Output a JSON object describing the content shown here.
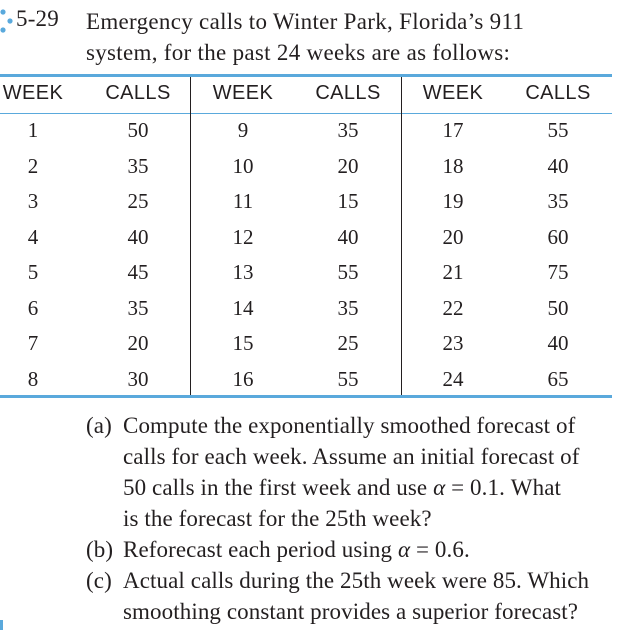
{
  "problem": {
    "number": "5-29",
    "text_lines": [
      "Emergency calls to Winter Park, Florida’s 911",
      "system, for the past 24 weeks are as follows:"
    ],
    "marker_color": "#5aa9dc"
  },
  "table": {
    "headers": [
      "WEEK",
      "CALLS",
      "WEEK",
      "CALLS",
      "WEEK",
      "CALLS"
    ],
    "rule_color": "#5aa9dc",
    "groups": [
      {
        "weeks": [
          "1",
          "2",
          "3",
          "4",
          "5",
          "6",
          "7",
          "8"
        ],
        "calls": [
          "50",
          "35",
          "25",
          "40",
          "45",
          "35",
          "20",
          "30"
        ]
      },
      {
        "weeks": [
          "9",
          "10",
          "11",
          "12",
          "13",
          "14",
          "15",
          "16"
        ],
        "calls": [
          "35",
          "20",
          "15",
          "40",
          "55",
          "35",
          "25",
          "55"
        ]
      },
      {
        "weeks": [
          "17",
          "18",
          "19",
          "20",
          "21",
          "22",
          "23",
          "24"
        ],
        "calls": [
          "55",
          "40",
          "35",
          "60",
          "75",
          "50",
          "40",
          "65"
        ]
      }
    ]
  },
  "parts": [
    {
      "label": "(a)",
      "lines": [
        "Compute the exponentially smoothed forecast of",
        "calls for each week. Assume an initial forecast of",
        "50 calls in the first week and use α = 0.1. What",
        "is the forecast for the 25th week?"
      ]
    },
    {
      "label": "(b)",
      "lines": [
        "Reforecast each period using α = 0.6."
      ]
    },
    {
      "label": "(c)",
      "lines": [
        "Actual calls during the 25th week were 85. Which",
        "smoothing constant provides a superior forecast?"
      ]
    }
  ]
}
